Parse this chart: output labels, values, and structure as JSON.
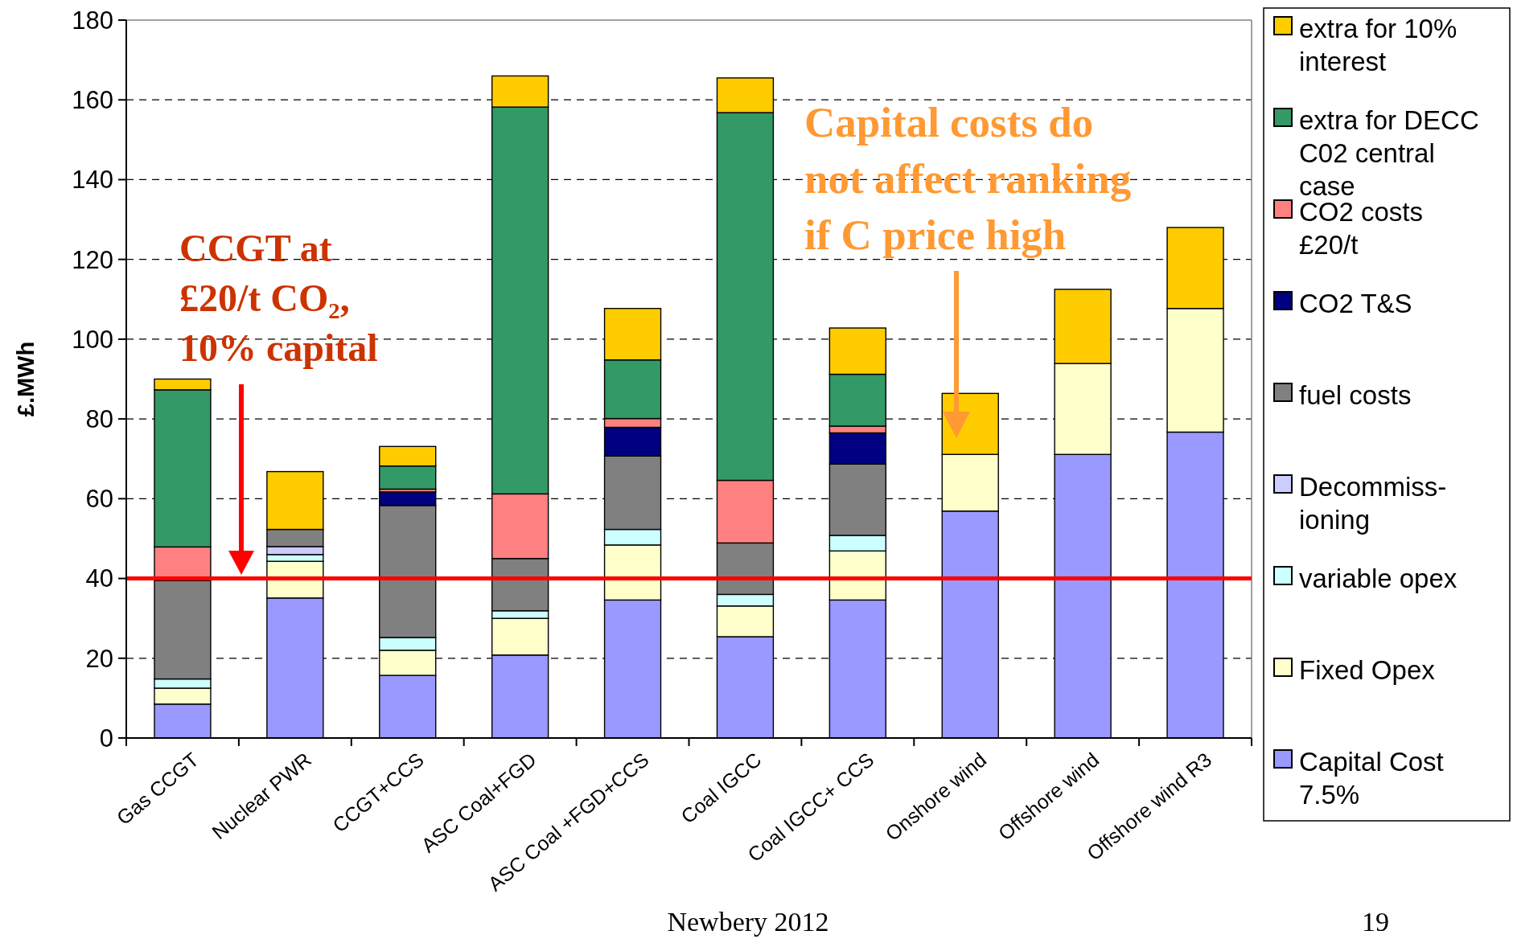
{
  "chart_data": {
    "type": "bar",
    "stacked": true,
    "ylabel": "£.MWh",
    "ylim": [
      0,
      180
    ],
    "yticks": [
      0,
      20,
      40,
      60,
      80,
      100,
      120,
      140,
      160,
      180
    ],
    "grid": "y",
    "legend": "right",
    "categories": [
      "Gas CCGT",
      "Nuclear PWR",
      "CCGT+CCS",
      "ASC Coal+FGD",
      "ASC Coal +FGD+CCS",
      "Coal IGCC",
      "Coal IGCC+ CCS",
      "Onshore wind",
      "Offshore wind",
      "Offshore wind R3"
    ],
    "series": [
      {
        "name": "Capital Cost 7.5%",
        "color": "#9999ff",
        "values": [
          8.5,
          35.1,
          15.7,
          20.8,
          34.6,
          25.4,
          34.6,
          56.9,
          71.1,
          76.7
        ]
      },
      {
        "name": "Fixed Opex",
        "color": "#ffffcc",
        "values": [
          4,
          9.2,
          6.3,
          9.2,
          13.8,
          7.7,
          12.3,
          14.2,
          22.8,
          31
        ]
      },
      {
        "name": "variable opex",
        "color": "#ccffff",
        "values": [
          2.3,
          1.7,
          3.2,
          1.9,
          3.9,
          2.9,
          3.9,
          null,
          null,
          null
        ]
      },
      {
        "name": "Decommiss-ioning",
        "color": "#ccccff",
        "values": [
          null,
          2,
          null,
          null,
          null,
          null,
          null,
          null,
          null,
          null
        ]
      },
      {
        "name": "fuel costs",
        "color": "#808080",
        "values": [
          24.7,
          4.3,
          33.1,
          13.1,
          18.4,
          12.9,
          17.9,
          null,
          null,
          null
        ]
      },
      {
        "name": "CO2 T&S",
        "color": "#000080",
        "values": [
          null,
          null,
          3.4,
          null,
          7.2,
          null,
          7.8,
          null,
          null,
          null
        ]
      },
      {
        "name": "CO2 costs £20/t",
        "color": "#ff8080",
        "values": [
          8.4,
          null,
          0.7,
          16.2,
          2.2,
          15.7,
          1.7,
          null,
          null,
          null
        ]
      },
      {
        "name": "extra for DECC C02 central case",
        "color": "#339966",
        "values": [
          39.4,
          null,
          5.8,
          97,
          14.7,
          92.2,
          13,
          null,
          null,
          null
        ]
      },
      {
        "name": "extra for 10% interest",
        "color": "#ffcc00",
        "values": [
          2.7,
          14.5,
          4.9,
          7.8,
          12.9,
          8.7,
          11.6,
          15.3,
          18.6,
          20.3
        ]
      }
    ],
    "ref_lines": [
      {
        "axis": "y",
        "value": 40,
        "color": "#ff0000"
      }
    ],
    "annotations": [
      "CCGT at\n£20/t CO₂,\n10% capital",
      "Capital  costs do\nnot affect ranking\nif C price high",
      "Newbery 2012",
      "19"
    ]
  }
}
